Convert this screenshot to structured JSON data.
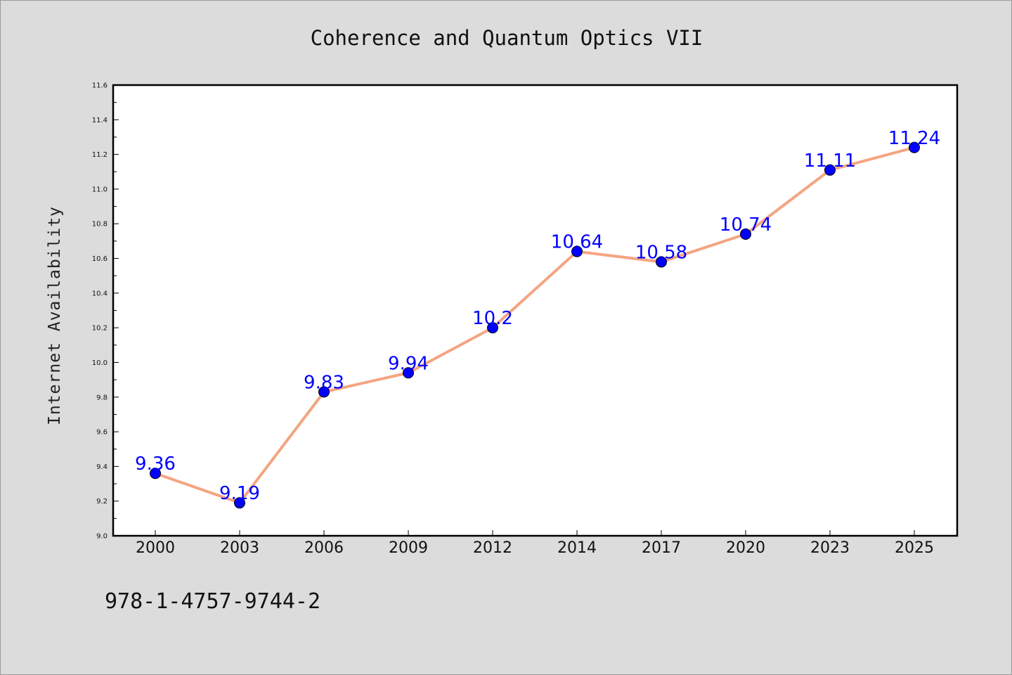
{
  "isbn": "978-1-4757-9744-2",
  "chart_data": {
    "type": "line",
    "title": "Coherence and Quantum Optics VII",
    "xlabel": "",
    "ylabel": "Internet Availability",
    "categories": [
      "2000",
      "2003",
      "2006",
      "2009",
      "2012",
      "2014",
      "2017",
      "2020",
      "2023",
      "2025"
    ],
    "series": [
      {
        "values": [
          9.36,
          9.19,
          9.83,
          9.94,
          10.2,
          10.64,
          10.58,
          10.74,
          11.11,
          11.24
        ],
        "data_labels": [
          "9.36",
          "9.19",
          "9.83",
          "9.94",
          "10.2",
          "10.64",
          "10.58",
          "10.74",
          "11.11",
          "11.24"
        ],
        "line_color": "#f4a582",
        "marker_color": "#0000ff",
        "label_color": "#0000ff"
      }
    ],
    "ylim": [
      9.0,
      11.6
    ],
    "yticks": [
      "9.0",
      "9.2",
      "9.4",
      "9.6",
      "9.8",
      "10.0",
      "10.2",
      "10.4",
      "10.6",
      "10.8",
      "11.0",
      "11.2",
      "11.4",
      "11.6"
    ],
    "grid": false,
    "legend": "none"
  }
}
